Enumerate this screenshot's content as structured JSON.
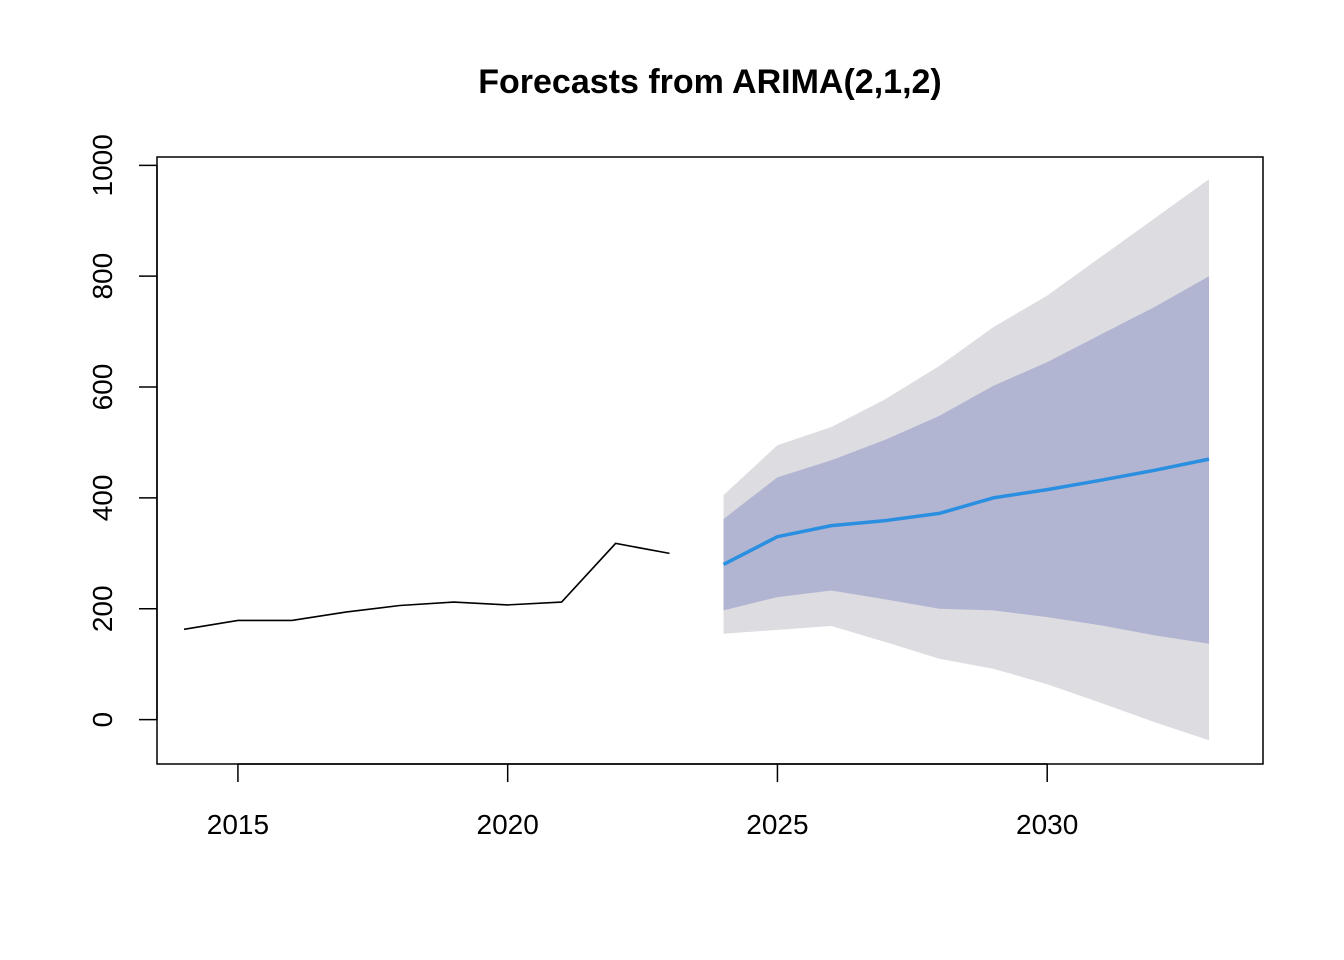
{
  "chart_data": {
    "type": "line",
    "title": "Forecasts from ARIMA(2,1,2)",
    "xlabel": "",
    "ylabel": "",
    "xlim": [
      2013.5,
      2034.0
    ],
    "ylim": [
      -80,
      1015
    ],
    "x_ticks": [
      2015,
      2020,
      2025,
      2030
    ],
    "y_ticks": [
      0,
      200,
      400,
      600,
      800,
      1000
    ],
    "grid": false,
    "legend": "none",
    "observed": {
      "x": [
        2014,
        2015,
        2016,
        2017,
        2018,
        2019,
        2020,
        2021,
        2022,
        2023
      ],
      "y": [
        163,
        179,
        179,
        194,
        206,
        212,
        207,
        212,
        318,
        300
      ],
      "color": "#000000"
    },
    "forecast": {
      "x": [
        2024,
        2025,
        2026,
        2027,
        2028,
        2029,
        2030,
        2031,
        2032,
        2033
      ],
      "mean": [
        280,
        330,
        350,
        359,
        372,
        400,
        415,
        432,
        450,
        470
      ],
      "lo80": [
        197,
        221,
        233,
        217,
        200,
        197,
        185,
        170,
        152,
        137
      ],
      "hi80": [
        362,
        437,
        468,
        505,
        548,
        602,
        645,
        695,
        745,
        800
      ],
      "lo95": [
        155,
        162,
        169,
        140,
        110,
        92,
        64,
        30,
        -5,
        -37
      ],
      "hi95": [
        405,
        495,
        528,
        578,
        638,
        708,
        765,
        835,
        905,
        975
      ],
      "mean_color": "#2a8fe0",
      "band80_color": "#b1b5d1",
      "band95_color": "#dcdce1"
    }
  }
}
